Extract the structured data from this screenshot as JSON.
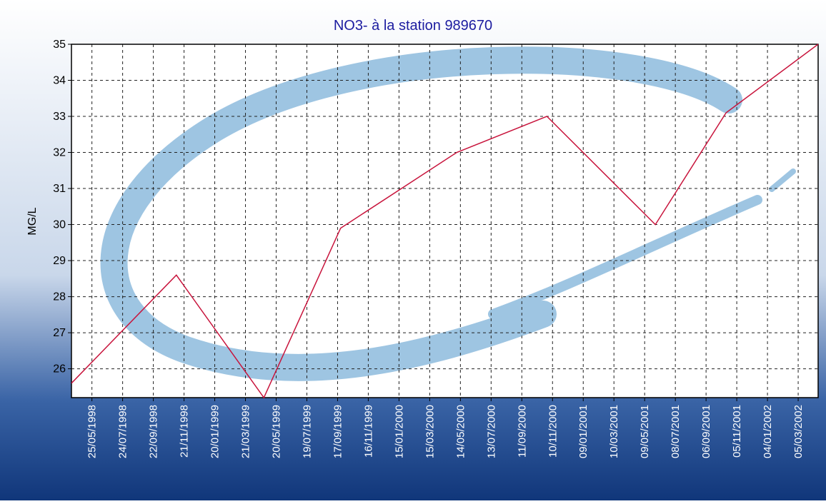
{
  "chart_data": {
    "type": "line",
    "title": "NO3- à la station 989670",
    "y_label": "MG/L",
    "x": [
      "15/04/1998",
      "06/11/1998",
      "26/04/1999",
      "23/09/1999",
      "07/05/2000",
      "30/10/2000",
      "30/05/2001",
      "15/10/2001",
      "13/04/2002"
    ],
    "series": [
      {
        "name": "NO3-",
        "color": "#c8143c",
        "values": [
          25.6,
          28.6,
          25.2,
          29.9,
          32.0,
          33.0,
          30.0,
          33.1,
          35.0
        ]
      }
    ],
    "xlim": [
      "15/04/1998",
      "13/04/2002"
    ],
    "xticks": [
      "25/05/1998",
      "24/07/1998",
      "22/09/1998",
      "21/11/1998",
      "20/01/1999",
      "21/03/1999",
      "20/05/1999",
      "19/07/1999",
      "17/09/1999",
      "16/11/1999",
      "15/01/2000",
      "15/03/2000",
      "14/05/2000",
      "13/07/2000",
      "11/09/2000",
      "10/11/2000",
      "09/01/2001",
      "10/03/2001",
      "09/05/2001",
      "08/07/2001",
      "06/09/2001",
      "05/11/2001",
      "04/01/2002",
      "05/03/2002"
    ],
    "ylim": [
      25.2,
      35
    ],
    "yticks": [
      26,
      27,
      28,
      29,
      30,
      31,
      32,
      33,
      34,
      35
    ],
    "grid": true
  }
}
